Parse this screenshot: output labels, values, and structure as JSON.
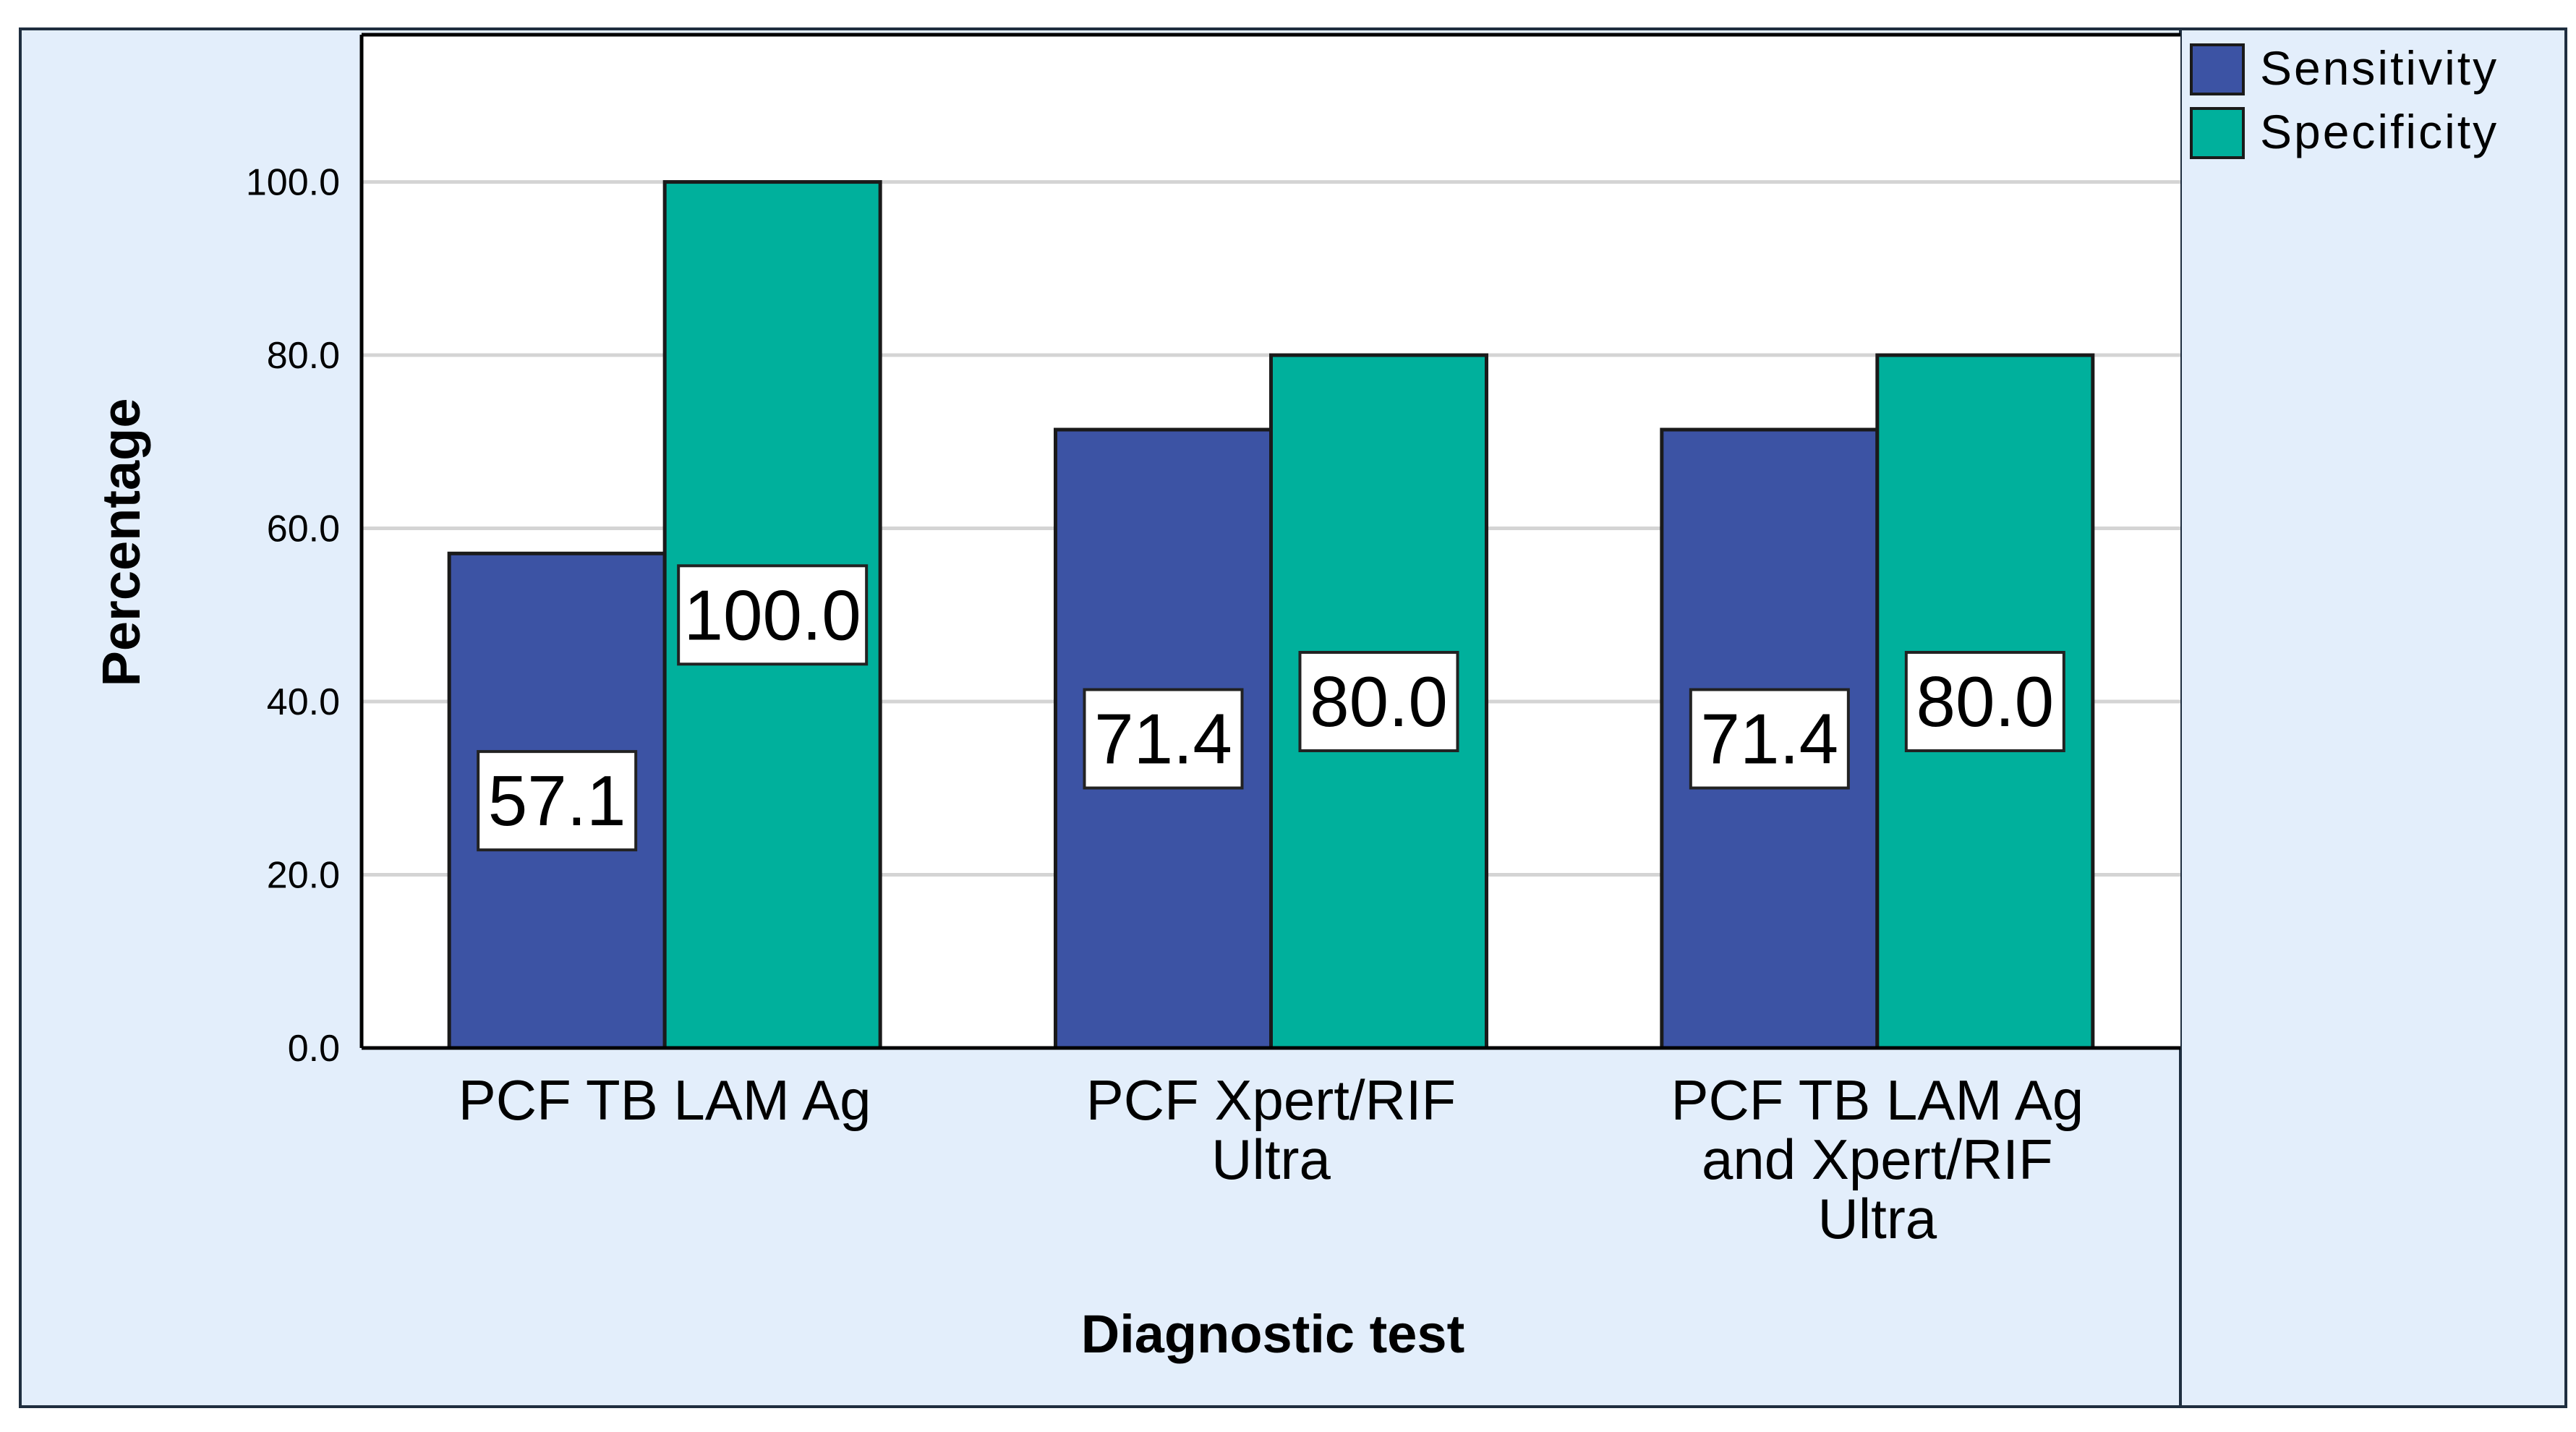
{
  "colors": {
    "outer_background": "#e3eefb",
    "plot_background": "#ffffff",
    "gridline": "#d4d4d4",
    "frame": "#1f2e3f",
    "axis": "#000000",
    "label_box_fill": "#ffffff"
  },
  "chart_data": {
    "type": "bar",
    "title": "",
    "xlabel": "Diagnostic test",
    "ylabel": "Percentage",
    "ylim": [
      0,
      117
    ],
    "yticks": [
      0,
      20,
      40,
      60,
      80,
      100
    ],
    "ytick_labels": [
      "0.0",
      "20.0",
      "40.0",
      "60.0",
      "80.0",
      "100.0"
    ],
    "grid": true,
    "legend_position": "top-right",
    "categories": [
      [
        "PCF TB LAM Ag"
      ],
      [
        "PCF Xpert/RIF",
        "Ultra"
      ],
      [
        "PCF TB LAM Ag",
        "and Xpert/RIF",
        "Ultra"
      ]
    ],
    "series": [
      {
        "name": "Sensitivity",
        "color": "#3c53a4",
        "values": [
          57.1,
          71.4,
          71.4
        ],
        "labels": [
          "57.1",
          "71.4",
          "71.4"
        ]
      },
      {
        "name": "Specificity",
        "color": "#00b09c",
        "values": [
          100.0,
          80.0,
          80.0
        ],
        "labels": [
          "100.0",
          "80.0",
          "80.0"
        ]
      }
    ]
  }
}
